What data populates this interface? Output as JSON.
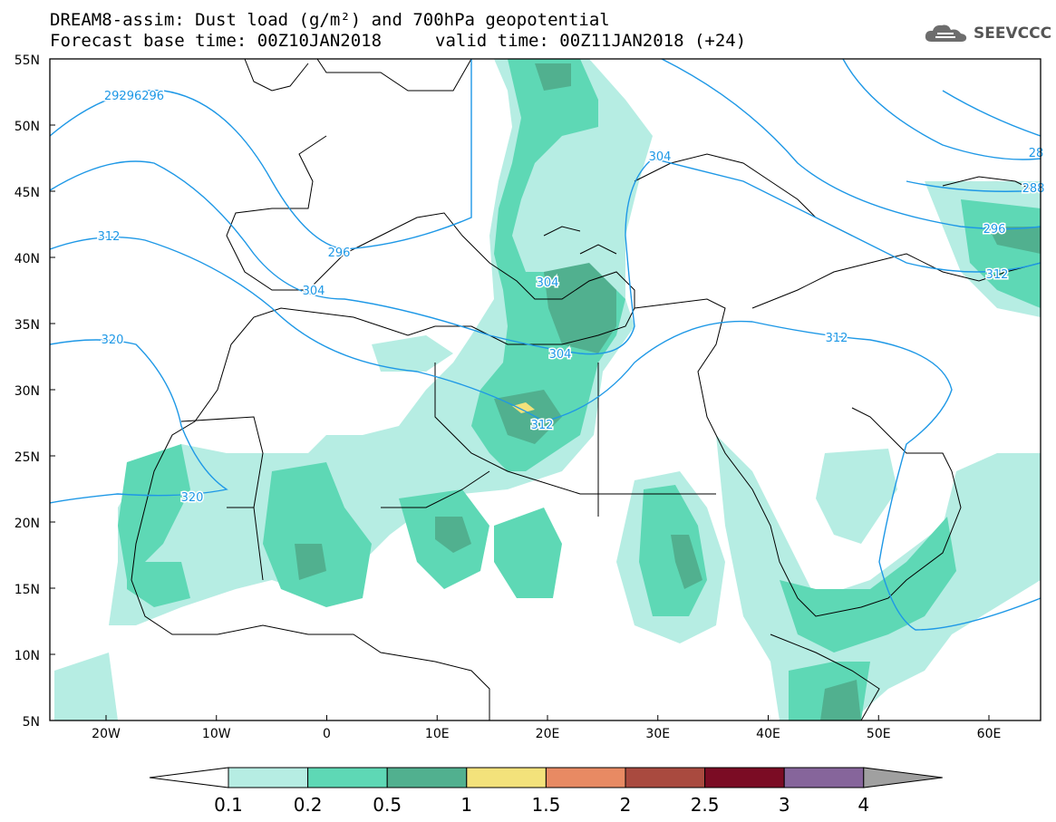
{
  "header": {
    "title_line1": "DREAM8-assim: Dust load (g/m²) and 700hPa geopotential",
    "title_line2": "Forecast base time: 00Z10JAN2018",
    "valid_time": "valid time: 00Z11JAN2018 (+24)"
  },
  "logo": {
    "icon": "cloud-logo-icon",
    "text": "SEEVCCC"
  },
  "map": {
    "lat_labels": [
      "55N",
      "50N",
      "45N",
      "40N",
      "35N",
      "30N",
      "25N",
      "20N",
      "15N",
      "10N",
      "5N"
    ],
    "lon_labels": [
      "20W",
      "10W",
      "0",
      "10E",
      "20E",
      "30E",
      "40E",
      "50E",
      "60E"
    ],
    "contour_labels": [
      "29296296",
      "304",
      "28",
      "288",
      "296",
      "312",
      "296",
      "304",
      "312",
      "304",
      "320",
      "304",
      "312",
      "320",
      "312"
    ]
  },
  "colorbar": {
    "ticks": [
      "0.1",
      "0.2",
      "0.5",
      "1",
      "1.5",
      "2",
      "2.5",
      "3",
      "4"
    ],
    "colors": [
      "#ffffff",
      "#b6ede3",
      "#5ed8b5",
      "#51b08f",
      "#f3e27b",
      "#e88a63",
      "#a94a3f",
      "#7b0c24",
      "#86659b",
      "#a0a0a0"
    ]
  }
}
